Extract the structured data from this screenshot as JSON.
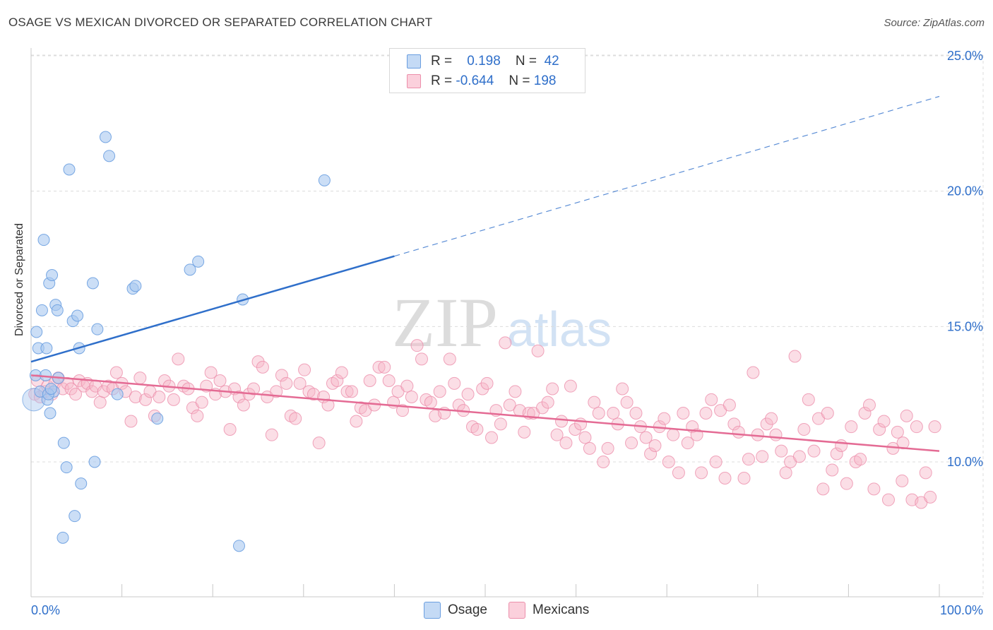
{
  "header": {
    "title": "OSAGE VS MEXICAN DIVORCED OR SEPARATED CORRELATION CHART",
    "source": "Source: ZipAtlas.com"
  },
  "watermark": {
    "zip": "ZIP",
    "atlas": "atlas"
  },
  "legend_top": {
    "rows": [
      {
        "r_label": "R =",
        "r_value": "0.198",
        "n_label": "N =",
        "n_value": "42",
        "color": "#a9c8f0"
      },
      {
        "r_label": "R =",
        "r_value": "-0.644",
        "n_label": "N =",
        "n_value": "198",
        "color": "#f6b6c8"
      }
    ]
  },
  "legend_bottom": {
    "items": [
      {
        "label": "Osage",
        "color": "#a9c8f0"
      },
      {
        "label": "Mexicans",
        "color": "#f6b6c8"
      }
    ]
  },
  "colors": {
    "osage_fill": "#a9c8f0",
    "osage_stroke": "#6a9ee0",
    "osage_line": "#2f6fca",
    "mex_fill": "#f6b6c8",
    "mex_stroke": "#ec8fab",
    "mex_line": "#e46b94",
    "axis_label": "#2f6fca",
    "grid": "#dcdcdc"
  },
  "chart_data": {
    "type": "scatter",
    "title": "OSAGE VS MEXICAN DIVORCED OR SEPARATED CORRELATION CHART",
    "xlabel": "",
    "ylabel": "Divorced or Separated",
    "xlim": [
      0,
      100
    ],
    "ylim": [
      5,
      26
    ],
    "x_tick_labels": [
      "0.0%",
      "100.0%"
    ],
    "y_ticks": [
      10,
      15,
      20,
      25
    ],
    "y_tick_labels": [
      "10.0%",
      "15.0%",
      "20.0%",
      "25.0%"
    ],
    "grid": true,
    "legend_position": "top-center",
    "series": [
      {
        "name": "Osage",
        "R": 0.198,
        "N": 42,
        "trend": {
          "x0": 0,
          "y0": 13.7,
          "x1": 40,
          "y1": 17.6,
          "dash_to_x": 100,
          "dash_to_y": 23.5
        },
        "points": [
          [
            0.3,
            12.3
          ],
          [
            0.5,
            13.2
          ],
          [
            0.6,
            14.8
          ],
          [
            0.8,
            14.2
          ],
          [
            1.0,
            12.6
          ],
          [
            1.2,
            15.6
          ],
          [
            1.4,
            18.2
          ],
          [
            1.6,
            13.2
          ],
          [
            1.7,
            14.2
          ],
          [
            1.8,
            12.3
          ],
          [
            2.0,
            16.6
          ],
          [
            2.1,
            11.8
          ],
          [
            2.3,
            16.9
          ],
          [
            2.5,
            12.6
          ],
          [
            2.7,
            15.8
          ],
          [
            2.9,
            15.6
          ],
          [
            3.0,
            13.1
          ],
          [
            3.5,
            7.2
          ],
          [
            3.6,
            10.7
          ],
          [
            3.9,
            9.8
          ],
          [
            4.2,
            20.8
          ],
          [
            4.6,
            15.2
          ],
          [
            4.8,
            8.0
          ],
          [
            5.1,
            15.4
          ],
          [
            5.3,
            14.2
          ],
          [
            5.5,
            9.2
          ],
          [
            6.8,
            16.6
          ],
          [
            7.0,
            10.0
          ],
          [
            7.3,
            14.9
          ],
          [
            8.2,
            22.0
          ],
          [
            8.6,
            21.3
          ],
          [
            9.5,
            12.5
          ],
          [
            11.2,
            16.4
          ],
          [
            11.5,
            16.5
          ],
          [
            13.9,
            11.6
          ],
          [
            17.5,
            17.1
          ],
          [
            18.4,
            17.4
          ],
          [
            22.9,
            6.9
          ],
          [
            23.3,
            16.0
          ],
          [
            32.3,
            20.4
          ],
          [
            1.9,
            12.5
          ],
          [
            2.2,
            12.7
          ]
        ]
      },
      {
        "name": "Mexicans",
        "R": -0.644,
        "N": 198,
        "trend": {
          "x0": 0,
          "y0": 13.2,
          "x1": 100,
          "y1": 10.4
        },
        "points": [
          [
            0.4,
            12.5
          ],
          [
            0.7,
            13.0
          ],
          [
            1.0,
            12.4
          ],
          [
            1.5,
            12.6
          ],
          [
            1.8,
            12.8
          ],
          [
            2.3,
            12.5
          ],
          [
            2.6,
            12.9
          ],
          [
            3.0,
            13.1
          ],
          [
            3.5,
            12.7
          ],
          [
            4.0,
            12.9
          ],
          [
            4.4,
            12.7
          ],
          [
            4.9,
            12.5
          ],
          [
            5.3,
            13.0
          ],
          [
            5.8,
            12.8
          ],
          [
            6.2,
            12.9
          ],
          [
            6.7,
            12.6
          ],
          [
            7.1,
            12.8
          ],
          [
            7.6,
            12.2
          ],
          [
            8.0,
            12.6
          ],
          [
            8.5,
            12.8
          ],
          [
            9.0,
            12.7
          ],
          [
            9.4,
            13.3
          ],
          [
            10.0,
            12.9
          ],
          [
            10.4,
            12.6
          ],
          [
            11.0,
            11.5
          ],
          [
            11.5,
            12.4
          ],
          [
            12.0,
            13.1
          ],
          [
            12.6,
            12.3
          ],
          [
            13.1,
            12.6
          ],
          [
            13.6,
            11.7
          ],
          [
            14.1,
            12.4
          ],
          [
            14.7,
            13.0
          ],
          [
            15.2,
            12.8
          ],
          [
            15.7,
            12.3
          ],
          [
            16.2,
            13.8
          ],
          [
            16.8,
            12.8
          ],
          [
            17.3,
            12.7
          ],
          [
            17.8,
            12.0
          ],
          [
            18.3,
            11.7
          ],
          [
            18.8,
            12.2
          ],
          [
            19.3,
            12.8
          ],
          [
            19.8,
            13.3
          ],
          [
            20.3,
            12.5
          ],
          [
            20.8,
            13.0
          ],
          [
            21.4,
            12.6
          ],
          [
            21.9,
            11.2
          ],
          [
            22.4,
            12.7
          ],
          [
            22.9,
            12.4
          ],
          [
            23.4,
            12.1
          ],
          [
            24.0,
            12.5
          ],
          [
            24.5,
            12.7
          ],
          [
            25.0,
            13.7
          ],
          [
            25.5,
            13.5
          ],
          [
            26.0,
            12.4
          ],
          [
            26.5,
            11.0
          ],
          [
            27.0,
            12.6
          ],
          [
            27.6,
            13.2
          ],
          [
            28.1,
            12.9
          ],
          [
            28.6,
            11.7
          ],
          [
            29.1,
            11.6
          ],
          [
            29.6,
            12.9
          ],
          [
            30.1,
            13.4
          ],
          [
            30.6,
            12.6
          ],
          [
            31.1,
            12.5
          ],
          [
            31.7,
            10.7
          ],
          [
            32.2,
            12.4
          ],
          [
            32.7,
            12.1
          ],
          [
            33.2,
            12.9
          ],
          [
            33.7,
            13.0
          ],
          [
            34.2,
            13.3
          ],
          [
            34.8,
            12.6
          ],
          [
            35.3,
            12.6
          ],
          [
            35.8,
            11.5
          ],
          [
            36.3,
            12.0
          ],
          [
            36.8,
            11.9
          ],
          [
            37.3,
            13.0
          ],
          [
            37.8,
            12.1
          ],
          [
            38.3,
            13.5
          ],
          [
            38.9,
            13.5
          ],
          [
            39.4,
            13.0
          ],
          [
            39.9,
            12.2
          ],
          [
            40.4,
            12.6
          ],
          [
            40.9,
            11.9
          ],
          [
            41.4,
            12.8
          ],
          [
            41.9,
            12.4
          ],
          [
            42.5,
            14.3
          ],
          [
            43.0,
            13.8
          ],
          [
            43.5,
            12.3
          ],
          [
            44.0,
            12.2
          ],
          [
            44.5,
            11.7
          ],
          [
            45.0,
            12.6
          ],
          [
            45.5,
            11.8
          ],
          [
            46.1,
            13.8
          ],
          [
            46.6,
            12.9
          ],
          [
            47.1,
            12.1
          ],
          [
            47.6,
            11.9
          ],
          [
            48.1,
            12.5
          ],
          [
            48.6,
            11.3
          ],
          [
            49.1,
            11.2
          ],
          [
            49.7,
            12.7
          ],
          [
            50.2,
            12.9
          ],
          [
            50.7,
            10.9
          ],
          [
            51.2,
            11.9
          ],
          [
            51.7,
            11.4
          ],
          [
            52.2,
            14.4
          ],
          [
            52.7,
            12.1
          ],
          [
            53.3,
            12.6
          ],
          [
            53.8,
            11.9
          ],
          [
            54.3,
            11.1
          ],
          [
            54.8,
            11.8
          ],
          [
            55.3,
            11.8
          ],
          [
            55.8,
            14.1
          ],
          [
            56.3,
            12.0
          ],
          [
            56.9,
            12.2
          ],
          [
            57.4,
            12.7
          ],
          [
            57.9,
            11.0
          ],
          [
            58.4,
            11.5
          ],
          [
            58.9,
            10.7
          ],
          [
            59.4,
            12.8
          ],
          [
            59.9,
            11.2
          ],
          [
            60.5,
            11.4
          ],
          [
            61.0,
            10.9
          ],
          [
            61.5,
            10.5
          ],
          [
            62.0,
            12.2
          ],
          [
            62.5,
            11.8
          ],
          [
            63.0,
            10.0
          ],
          [
            63.5,
            10.5
          ],
          [
            64.1,
            11.8
          ],
          [
            64.6,
            11.4
          ],
          [
            65.1,
            12.7
          ],
          [
            65.6,
            12.2
          ],
          [
            66.1,
            10.7
          ],
          [
            66.6,
            11.8
          ],
          [
            67.1,
            11.3
          ],
          [
            67.7,
            10.9
          ],
          [
            68.2,
            10.3
          ],
          [
            68.7,
            10.6
          ],
          [
            69.2,
            11.3
          ],
          [
            69.7,
            11.6
          ],
          [
            70.2,
            10.0
          ],
          [
            70.7,
            11.0
          ],
          [
            71.3,
            9.6
          ],
          [
            71.8,
            11.8
          ],
          [
            72.3,
            10.7
          ],
          [
            72.8,
            11.3
          ],
          [
            73.3,
            11.0
          ],
          [
            73.8,
            9.6
          ],
          [
            74.3,
            11.8
          ],
          [
            74.9,
            12.3
          ],
          [
            75.4,
            10.0
          ],
          [
            75.9,
            11.9
          ],
          [
            76.4,
            9.4
          ],
          [
            76.9,
            12.1
          ],
          [
            77.4,
            11.4
          ],
          [
            77.9,
            11.1
          ],
          [
            78.5,
            9.4
          ],
          [
            79.0,
            10.1
          ],
          [
            79.5,
            13.3
          ],
          [
            80.0,
            11.0
          ],
          [
            80.5,
            10.2
          ],
          [
            81.0,
            11.4
          ],
          [
            81.5,
            11.6
          ],
          [
            82.0,
            11.0
          ],
          [
            82.6,
            10.4
          ],
          [
            83.1,
            9.6
          ],
          [
            83.6,
            10.0
          ],
          [
            84.1,
            13.9
          ],
          [
            84.6,
            10.2
          ],
          [
            85.1,
            11.2
          ],
          [
            85.6,
            12.3
          ],
          [
            86.2,
            10.4
          ],
          [
            86.7,
            11.6
          ],
          [
            87.2,
            9.0
          ],
          [
            87.7,
            11.8
          ],
          [
            88.2,
            9.7
          ],
          [
            88.7,
            10.3
          ],
          [
            89.2,
            10.6
          ],
          [
            89.8,
            9.2
          ],
          [
            90.3,
            11.3
          ],
          [
            90.8,
            10.0
          ],
          [
            91.3,
            10.1
          ],
          [
            91.8,
            11.8
          ],
          [
            92.3,
            12.1
          ],
          [
            92.8,
            9.0
          ],
          [
            93.4,
            11.2
          ],
          [
            93.9,
            11.5
          ],
          [
            94.4,
            8.6
          ],
          [
            94.9,
            10.5
          ],
          [
            95.4,
            11.1
          ],
          [
            95.9,
            9.3
          ],
          [
            96.4,
            11.7
          ],
          [
            97.0,
            8.6
          ],
          [
            97.5,
            11.3
          ],
          [
            98.0,
            8.5
          ],
          [
            98.5,
            9.6
          ],
          [
            99.0,
            8.7
          ],
          [
            99.5,
            11.3
          ],
          [
            96.0,
            10.7
          ]
        ]
      }
    ]
  }
}
